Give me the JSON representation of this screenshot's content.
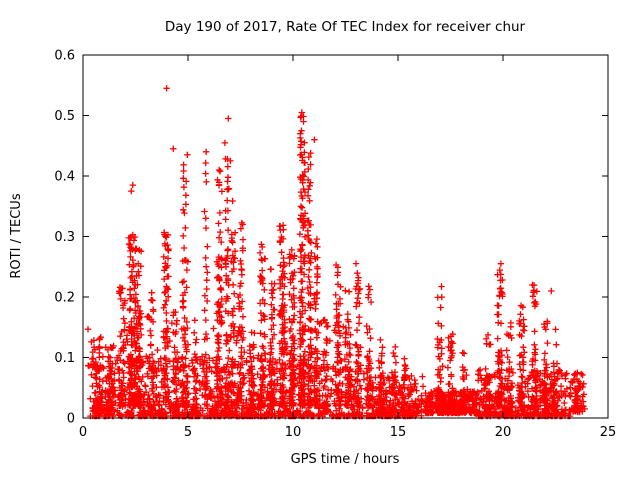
{
  "chart_data": {
    "type": "scatter",
    "title": "Day 190 of 2017, Rate Of TEC Index for receiver chur",
    "xlabel": "GPS time / hours",
    "ylabel": "ROTI / TECUs",
    "xlim": [
      0,
      25
    ],
    "ylim": [
      0,
      0.6
    ],
    "grid": false,
    "legend": null,
    "marker": "plus",
    "marker_color": "#ff0000",
    "axis_color": "#000000",
    "background_color": "#ffffff",
    "xticks": [
      {
        "v": 0,
        "label": "0"
      },
      {
        "v": 5,
        "label": "5"
      },
      {
        "v": 10,
        "label": "10"
      },
      {
        "v": 15,
        "label": "15"
      },
      {
        "v": 20,
        "label": "20"
      },
      {
        "v": 25,
        "label": "25"
      }
    ],
    "yticks": [
      {
        "v": 0.0,
        "label": "0"
      },
      {
        "v": 0.1,
        "label": "0.1"
      },
      {
        "v": 0.2,
        "label": "0.2"
      },
      {
        "v": 0.3,
        "label": "0.3"
      },
      {
        "v": 0.4,
        "label": "0.4"
      },
      {
        "v": 0.5,
        "label": "0.5"
      },
      {
        "v": 0.6,
        "label": "0.6"
      }
    ],
    "seed": 20170190,
    "cluster_format": "[x_center_hours, x_width_hours, n_points, roti_min, roti_max, low_bias_power] — dense red '+' point clouds read from the plot",
    "clusters": [
      [
        6.85,
        13.1,
        900,
        0.003,
        0.1,
        2.8
      ],
      [
        6.5,
        12.6,
        150,
        0.08,
        0.16,
        2.0
      ],
      [
        14.85,
        2.7,
        220,
        0.003,
        0.07,
        2.5
      ],
      [
        17.55,
        2.5,
        300,
        0.008,
        0.045,
        1.8
      ],
      [
        21.0,
        4.4,
        380,
        0.003,
        0.08,
        2.5
      ],
      [
        23.55,
        0.7,
        50,
        0.01,
        0.075,
        1.8
      ],
      [
        0.7,
        0.5,
        45,
        0.01,
        0.14,
        2.0
      ],
      [
        1.3,
        0.4,
        45,
        0.01,
        0.13,
        2.0
      ],
      [
        1.85,
        0.3,
        55,
        0.02,
        0.22,
        1.8
      ],
      [
        2.35,
        0.35,
        110,
        0.02,
        0.31,
        1.5
      ],
      [
        2.65,
        0.25,
        70,
        0.02,
        0.28,
        1.6
      ],
      [
        3.2,
        0.3,
        45,
        0.01,
        0.21,
        2.0
      ],
      [
        3.95,
        0.25,
        70,
        0.02,
        0.31,
        1.5
      ],
      [
        4.4,
        0.2,
        30,
        0.01,
        0.18,
        2.0
      ],
      [
        4.85,
        0.3,
        70,
        0.02,
        0.42,
        1.8
      ],
      [
        5.3,
        0.25,
        40,
        0.01,
        0.19,
        2.0
      ],
      [
        5.85,
        0.15,
        30,
        0.02,
        0.43,
        1.8
      ],
      [
        6.5,
        0.25,
        80,
        0.02,
        0.41,
        1.6
      ],
      [
        6.85,
        0.2,
        55,
        0.02,
        0.48,
        1.7
      ],
      [
        7.15,
        0.2,
        45,
        0.02,
        0.37,
        1.8
      ],
      [
        7.5,
        0.25,
        55,
        0.02,
        0.34,
        1.8
      ],
      [
        8.05,
        0.25,
        40,
        0.01,
        0.16,
        2.0
      ],
      [
        8.55,
        0.25,
        60,
        0.02,
        0.29,
        1.8
      ],
      [
        9.0,
        0.25,
        60,
        0.02,
        0.25,
        1.8
      ],
      [
        9.5,
        0.3,
        100,
        0.02,
        0.32,
        1.6
      ],
      [
        9.95,
        0.25,
        90,
        0.02,
        0.28,
        1.6
      ],
      [
        10.45,
        0.25,
        140,
        0.02,
        0.5,
        1.5
      ],
      [
        10.8,
        0.2,
        70,
        0.02,
        0.45,
        1.7
      ],
      [
        11.1,
        0.2,
        55,
        0.02,
        0.3,
        1.8
      ],
      [
        11.55,
        0.25,
        40,
        0.01,
        0.18,
        2.0
      ],
      [
        12.15,
        0.25,
        55,
        0.02,
        0.26,
        1.8
      ],
      [
        12.6,
        0.25,
        50,
        0.02,
        0.22,
        1.8
      ],
      [
        13.1,
        0.25,
        45,
        0.02,
        0.27,
        1.8
      ],
      [
        13.6,
        0.25,
        40,
        0.02,
        0.22,
        1.9
      ],
      [
        14.2,
        0.3,
        40,
        0.01,
        0.13,
        2.0
      ],
      [
        14.8,
        0.25,
        30,
        0.01,
        0.12,
        2.0
      ],
      [
        15.3,
        0.25,
        25,
        0.01,
        0.1,
        2.0
      ],
      [
        17.0,
        0.25,
        45,
        0.01,
        0.22,
        1.8
      ],
      [
        17.5,
        0.25,
        35,
        0.01,
        0.15,
        2.0
      ],
      [
        18.2,
        0.25,
        25,
        0.01,
        0.12,
        2.0
      ],
      [
        19.3,
        0.3,
        40,
        0.01,
        0.14,
        2.0
      ],
      [
        19.85,
        0.25,
        55,
        0.02,
        0.25,
        1.7
      ],
      [
        20.3,
        0.25,
        40,
        0.01,
        0.16,
        2.0
      ],
      [
        20.9,
        0.25,
        45,
        0.01,
        0.2,
        1.8
      ],
      [
        21.5,
        0.25,
        45,
        0.02,
        0.22,
        1.7
      ],
      [
        22.0,
        0.25,
        40,
        0.01,
        0.16,
        1.9
      ],
      [
        22.5,
        0.2,
        28,
        0.01,
        0.15,
        1.9
      ],
      [
        23.5,
        0.2,
        20,
        0.01,
        0.08,
        1.8
      ]
    ],
    "notable_points": [
      [
        3.98,
        0.545
      ],
      [
        4.3,
        0.445
      ],
      [
        4.97,
        0.435
      ],
      [
        5.86,
        0.44
      ],
      [
        6.48,
        0.41
      ],
      [
        6.92,
        0.495
      ],
      [
        7.02,
        0.425
      ],
      [
        2.37,
        0.385
      ],
      [
        2.3,
        0.375
      ],
      [
        10.42,
        0.505
      ],
      [
        10.5,
        0.49
      ],
      [
        11.02,
        0.46
      ],
      [
        19.9,
        0.255
      ],
      [
        21.4,
        0.22
      ],
      [
        22.3,
        0.21
      ]
    ]
  }
}
